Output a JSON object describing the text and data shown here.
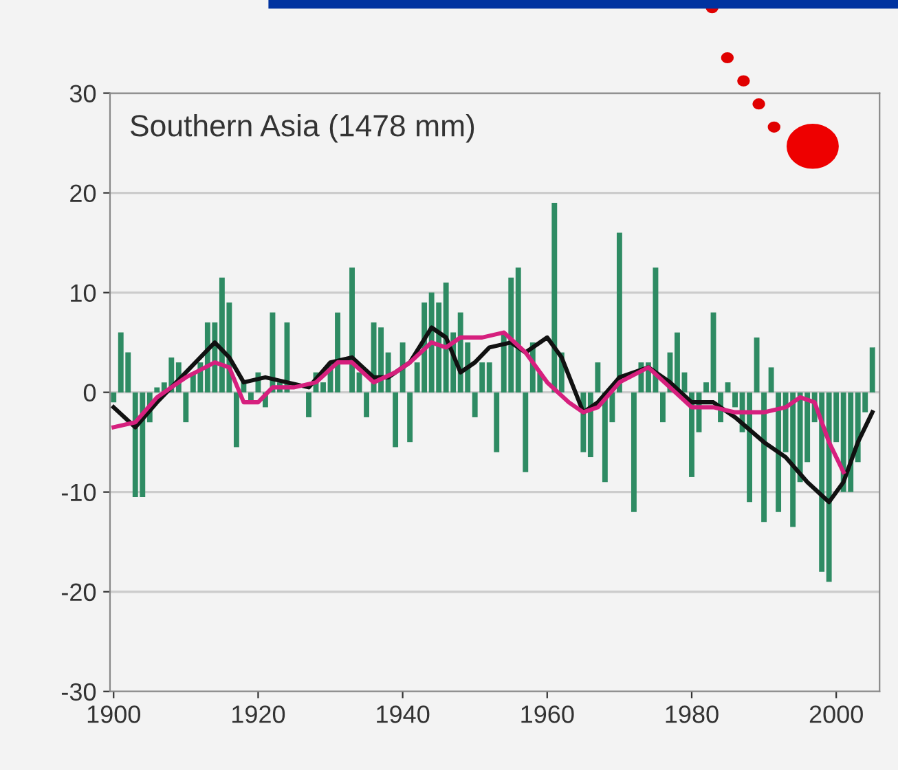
{
  "chart_data": {
    "type": "bar",
    "title": "Southern Asia (1478 mm)",
    "x": [
      1900,
      1901,
      1902,
      1903,
      1904,
      1905,
      1906,
      1907,
      1908,
      1909,
      1910,
      1911,
      1912,
      1913,
      1914,
      1915,
      1916,
      1917,
      1918,
      1919,
      1920,
      1921,
      1922,
      1923,
      1924,
      1925,
      1926,
      1927,
      1928,
      1929,
      1930,
      1931,
      1932,
      1933,
      1934,
      1935,
      1936,
      1937,
      1938,
      1939,
      1940,
      1941,
      1942,
      1943,
      1944,
      1945,
      1946,
      1947,
      1948,
      1949,
      1950,
      1951,
      1952,
      1953,
      1954,
      1955,
      1956,
      1957,
      1958,
      1959,
      1960,
      1961,
      1962,
      1963,
      1964,
      1965,
      1966,
      1967,
      1968,
      1969,
      1970,
      1971,
      1972,
      1973,
      1974,
      1975,
      1976,
      1977,
      1978,
      1979,
      1980,
      1981,
      1982,
      1983,
      1984,
      1985,
      1986,
      1987,
      1988,
      1989,
      1990,
      1991,
      1992,
      1993,
      1994,
      1995,
      1996,
      1997,
      1998,
      1999,
      2000,
      2001,
      2002,
      2003,
      2004,
      2005
    ],
    "series": [
      {
        "color": "#2e8b63",
        "values": [
          -1,
          6,
          4,
          -10.5,
          -10.5,
          -3,
          0.5,
          1,
          3.5,
          3,
          -3,
          2,
          3,
          7,
          7,
          11.5,
          9,
          -5.5,
          1,
          -1,
          2,
          -1.5,
          8,
          1,
          7,
          null,
          0,
          -2.5,
          2,
          1,
          3,
          8,
          0,
          12.5,
          2,
          -2.5,
          7,
          6.5,
          4,
          -5.5,
          5,
          -5,
          3,
          9,
          10,
          9,
          11,
          6,
          8,
          5,
          -2.5,
          3,
          3,
          -6,
          6,
          11.5,
          12.5,
          -8,
          5,
          2,
          0,
          19,
          4,
          0,
          null,
          -6,
          -6.5,
          3,
          -9,
          -3,
          16,
          0,
          -12,
          3,
          3,
          12.5,
          -3,
          4,
          6,
          2,
          -8.5,
          -4,
          1,
          8,
          -3,
          1,
          -1.5,
          -4,
          -11,
          5.5,
          -13,
          2.5,
          -12,
          -6,
          -13.5,
          -9,
          -7,
          -3,
          -18,
          -19,
          -5,
          -10,
          -10,
          -7,
          -2,
          4.5
        ]
      },
      {
        "type": "line",
        "color": "#111111",
        "x": [
          1900,
          1903,
          1906,
          1910,
          1914,
          1916,
          1918,
          1921,
          1924,
          1927,
          1930,
          1933,
          1936,
          1938,
          1941,
          1944,
          1946,
          1948,
          1950,
          1952,
          1955,
          1957,
          1960,
          1962,
          1965,
          1967,
          1970,
          1974,
          1977,
          1980,
          1983,
          1986,
          1990,
          1993,
          1996,
          1999,
          2001,
          2003,
          2005
        ],
        "values": [
          -1.5,
          -3.5,
          -1,
          2,
          5,
          3.5,
          1,
          1.5,
          1,
          0.5,
          3,
          3.5,
          1.5,
          1.5,
          3,
          6.5,
          5.5,
          2,
          3,
          4.5,
          5,
          4,
          5.5,
          3.5,
          -2,
          -1,
          1.5,
          2.5,
          1,
          -1,
          -1,
          -2.5,
          -5,
          -6.5,
          -9,
          -11,
          -9,
          -5,
          -2
        ]
      },
      {
        "type": "line",
        "color": "#d6207e",
        "x": [
          1900,
          1903,
          1906,
          1910,
          1914,
          1916,
          1918,
          1920,
          1922,
          1925,
          1928,
          1931,
          1933,
          1936,
          1939,
          1941,
          1944,
          1946,
          1948,
          1951,
          1954,
          1957,
          1960,
          1963,
          1965,
          1967,
          1970,
          1974,
          1977,
          1980,
          1983,
          1986,
          1990,
          1993,
          1995,
          1997,
          1999,
          2001
        ],
        "values": [
          -3.5,
          -3,
          -0.5,
          1.5,
          3,
          2.5,
          -1,
          -1,
          0.5,
          0.5,
          1,
          3,
          3,
          1,
          2,
          3,
          5,
          4.5,
          5.5,
          5.5,
          6,
          4,
          1,
          -1,
          -2,
          -1.5,
          1,
          2.5,
          0.5,
          -1.5,
          -1.5,
          -2,
          -2,
          -1.5,
          -0.5,
          -1,
          -5,
          -8
        ]
      }
    ],
    "xlim": [
      1899.5,
      2006
    ],
    "xticks": [
      1900,
      1920,
      1940,
      1960,
      1980,
      2000
    ],
    "ylim": [
      -30,
      30
    ],
    "yticks": [
      -30,
      -20,
      -10,
      0,
      10,
      20,
      30
    ],
    "grid": "y"
  }
}
